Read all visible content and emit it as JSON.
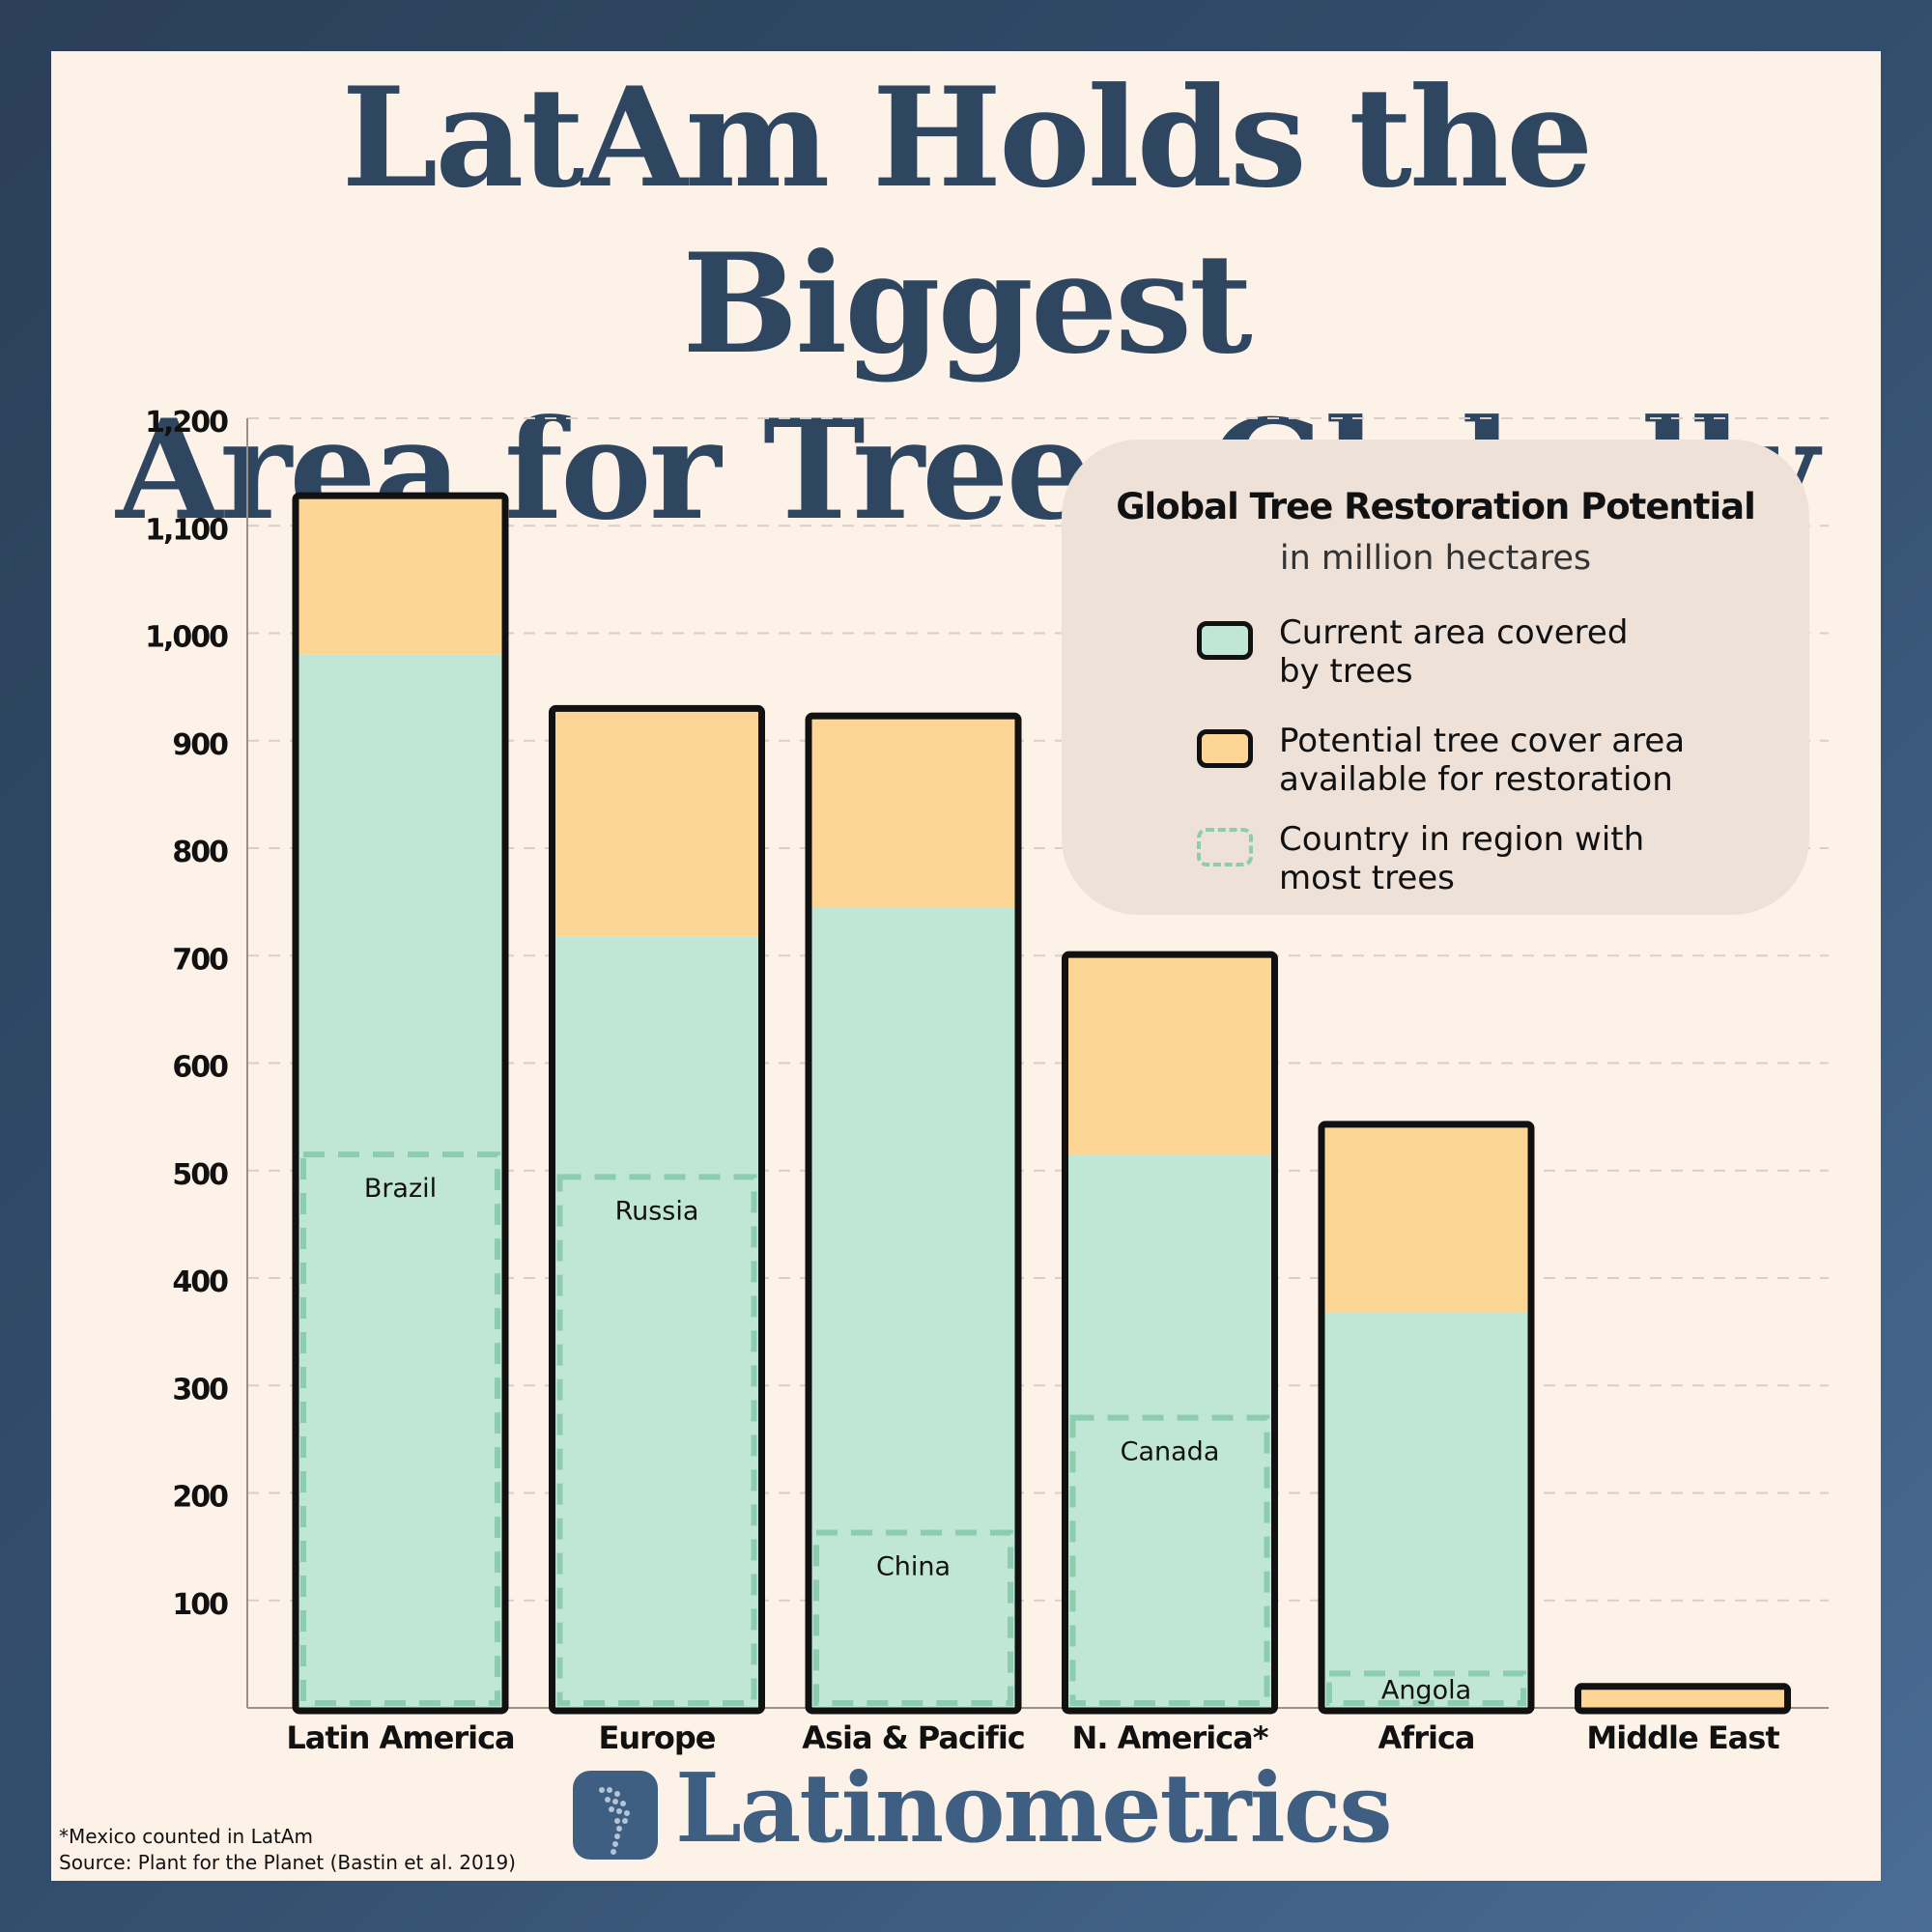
{
  "title": {
    "line1": "LatAm Holds the Biggest",
    "line2": "Area for Trees Globally"
  },
  "legend": {
    "title": "Global Tree Restoration Potential",
    "subtitle": "in million hectares",
    "items": [
      {
        "label": "Current area covered\nby trees",
        "style": "solid",
        "color": "#c0e6d6"
      },
      {
        "label": "Potential tree cover area\navailable for restoration",
        "style": "solid",
        "color": "#fdd696"
      },
      {
        "label": "Country in region with\nmost trees",
        "style": "dashed",
        "color": "#8ccdb0"
      }
    ]
  },
  "chart_data": {
    "type": "bar",
    "stacked": true,
    "categories": [
      "Latin America",
      "Europe",
      "Asia & Pacific",
      "N. America*",
      "Africa",
      "Middle East"
    ],
    "series": [
      {
        "name": "Current area covered by trees",
        "color": "#c0e6d6",
        "values": [
          980,
          718,
          745,
          515,
          368,
          0
        ]
      },
      {
        "name": "Potential tree cover area available for restoration",
        "color": "#fdd696",
        "values": [
          148,
          212,
          178,
          186,
          175,
          20
        ]
      }
    ],
    "top_country": {
      "name": "Country in region with most trees",
      "color": "#8ccdb0",
      "values": [
        515,
        494,
        163,
        270,
        32,
        null
      ],
      "labels": [
        "Brazil",
        "Russia",
        "China",
        "Canada",
        "Angola",
        ""
      ]
    },
    "ylim": [
      0,
      1200
    ],
    "yticks": [
      100,
      200,
      300,
      400,
      500,
      600,
      700,
      800,
      900,
      1000,
      1100,
      1200
    ],
    "ytick_labels": [
      "100",
      "200",
      "300",
      "400",
      "500",
      "600",
      "700",
      "800",
      "900",
      "1,000",
      "1,100",
      "1,200"
    ],
    "grid": true
  },
  "branding": {
    "logo_text": "Latinometrics"
  },
  "footnote": {
    "line1": "*Mexico counted in LatAm",
    "line2": "Source: Plant for the Planet (Bastin et al. 2019)"
  }
}
